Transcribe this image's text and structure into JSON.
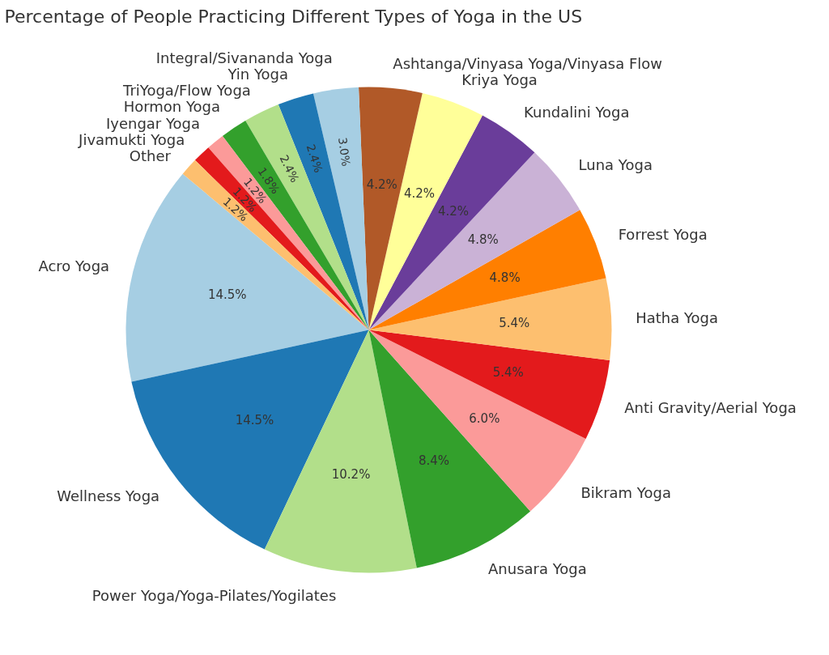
{
  "chart_data": {
    "type": "pie",
    "title": "Percentage of People Practicing Different Types of Yoga in the US",
    "categories": [
      "Acro Yoga",
      "Wellness Yoga",
      "Power Yoga/Yoga-Pilates/Yogilates",
      "Anusara Yoga",
      "Bikram Yoga",
      "Anti Gravity/Aerial Yoga",
      "Hatha Yoga",
      "Forrest Yoga",
      "Luna Yoga",
      "Kundalini Yoga",
      "Kriya Yoga",
      "Ashtanga/Vinyasa Yoga/Vinyasa Flow",
      "Integral/Sivananda Yoga",
      "Yin Yoga",
      "TriYoga/Flow Yoga",
      "Hormon Yoga",
      "Iyengar Yoga",
      "Jivamukti Yoga",
      "Other"
    ],
    "values": [
      14.5,
      14.5,
      10.2,
      8.4,
      6.0,
      5.4,
      5.4,
      4.8,
      4.8,
      4.2,
      4.2,
      4.2,
      3.0,
      2.4,
      2.4,
      1.8,
      1.2,
      1.2,
      1.2
    ],
    "colors": [
      "#a6cee3",
      "#1f78b4",
      "#b2df8a",
      "#33a02c",
      "#fb9a99",
      "#e31a1c",
      "#fdbf6f",
      "#ff7f00",
      "#cab2d6",
      "#6a3d9a",
      "#ffff99",
      "#b15928",
      "#a6cee3",
      "#1f78b4",
      "#b2df8a",
      "#33a02c",
      "#fb9a99",
      "#e31a1c",
      "#fdbf6f"
    ],
    "value_labels": [
      "14.5%",
      "14.5%",
      "10.2%",
      "8.4%",
      "6.0%",
      "5.4%",
      "5.4%",
      "4.8%",
      "4.8%",
      "4.2%",
      "4.2%",
      "4.2%",
      "3.0%",
      "2.4%",
      "2.4%",
      "1.8%",
      "1.2%",
      "1.2%",
      "1.2%"
    ]
  }
}
